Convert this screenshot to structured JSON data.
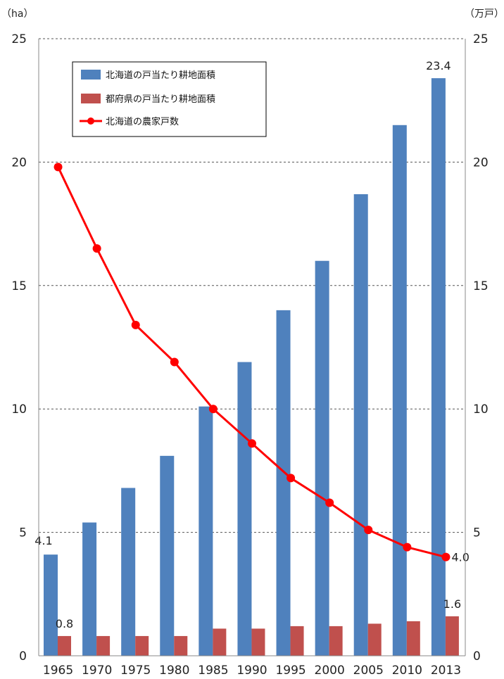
{
  "chart_data": {
    "type": "bar",
    "title": "",
    "left_axis_unit": "（ha）",
    "right_axis_unit": "（万戸）",
    "categories": [
      "1965",
      "1970",
      "1975",
      "1980",
      "1985",
      "1990",
      "1995",
      "2000",
      "2005",
      "2010",
      "2013"
    ],
    "ylim_left": [
      0,
      25
    ],
    "ylim_right": [
      0,
      25
    ],
    "yticks": [
      "0",
      "5",
      "10",
      "15",
      "20",
      "25"
    ],
    "grid": true,
    "legend_position": "top-left",
    "series": [
      {
        "name": "北海道の戸当たり耕地面積",
        "type": "bar",
        "axis": "left",
        "color": "#4f81bd",
        "values": [
          4.1,
          5.4,
          6.8,
          8.1,
          10.1,
          11.9,
          14.0,
          16.0,
          18.7,
          21.5,
          23.4
        ]
      },
      {
        "name": "都府県の戸当たり耕地面積",
        "type": "bar",
        "axis": "left",
        "color": "#c0504d",
        "values": [
          0.8,
          0.8,
          0.8,
          0.8,
          1.1,
          1.1,
          1.2,
          1.2,
          1.3,
          1.4,
          1.6
        ]
      },
      {
        "name": "北海道の農家戸数",
        "type": "line",
        "axis": "right",
        "color": "#ff0000",
        "values": [
          19.8,
          16.5,
          13.4,
          11.9,
          10.0,
          8.6,
          7.2,
          6.2,
          5.1,
          4.4,
          4.0
        ]
      }
    ],
    "data_labels": {
      "hokkaido_first": "4.1",
      "hokkaido_last": "23.4",
      "fuken_first": "0.8",
      "fuken_last": "1.6",
      "households_last": "4.0"
    }
  }
}
